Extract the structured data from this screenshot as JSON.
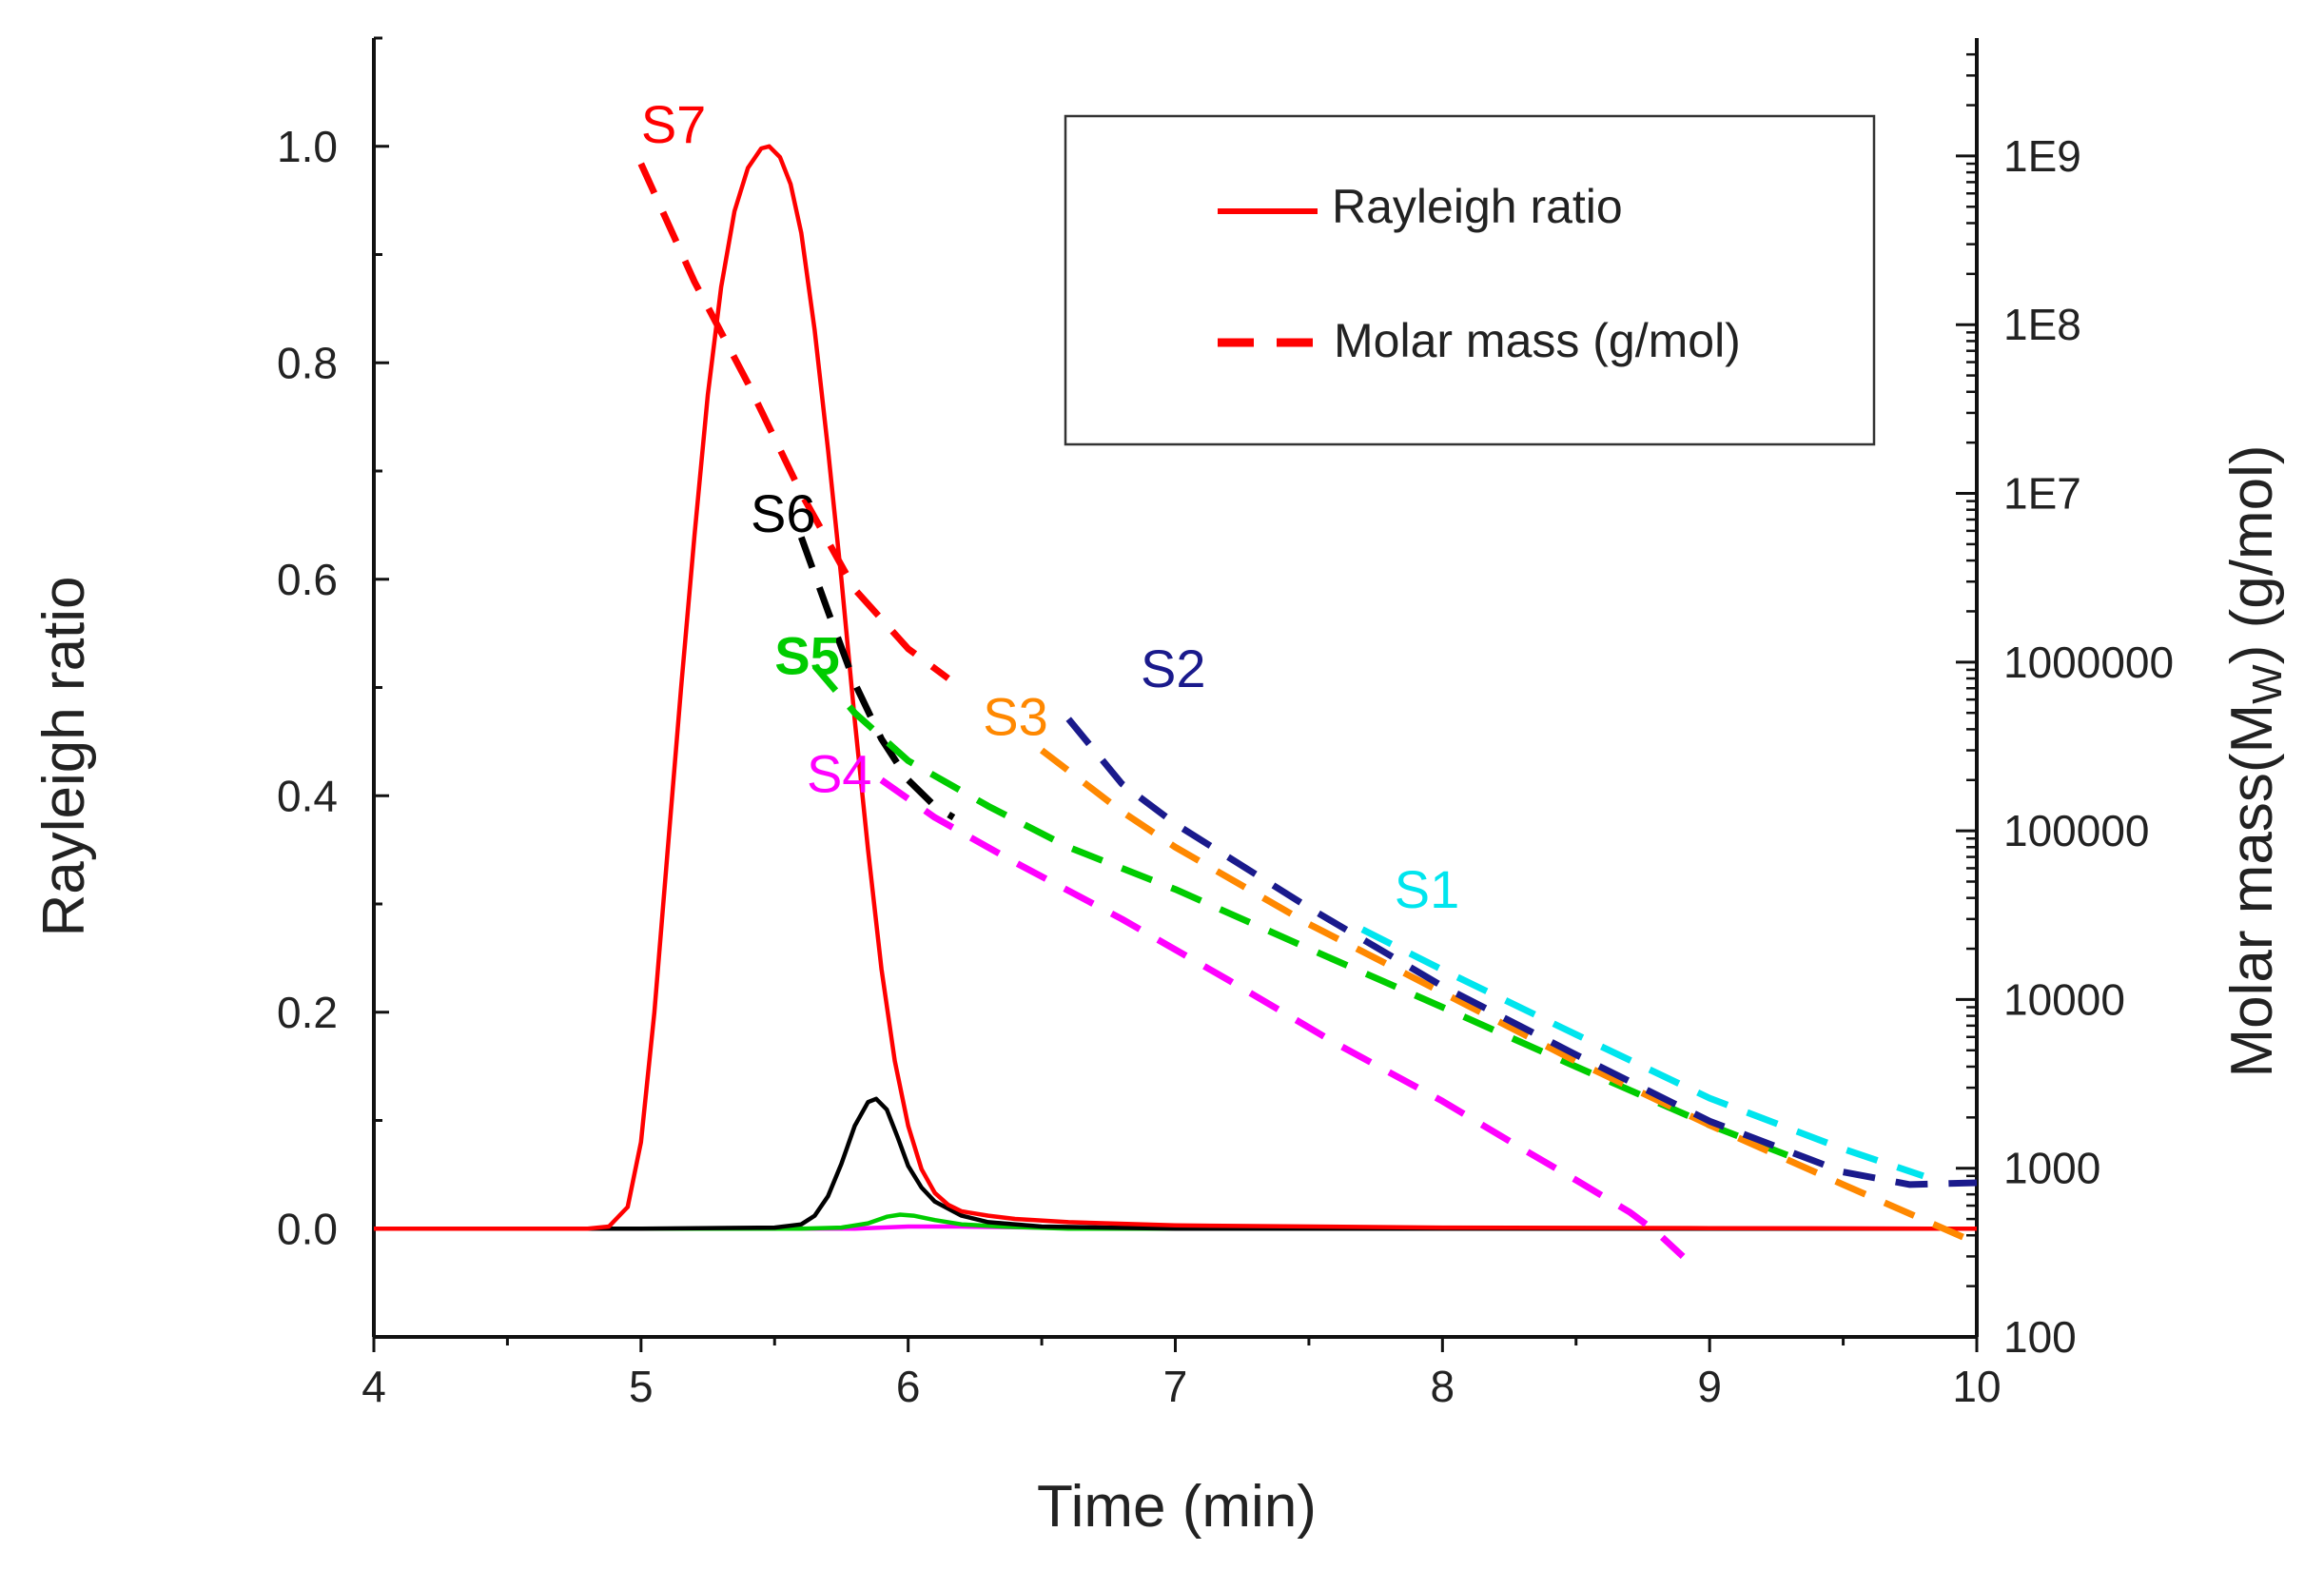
{
  "chart_data": {
    "type": "line",
    "xlabel": "Time (min)",
    "ylabel": "Rayleigh ratio",
    "y2label_prefix": "Molar mass(M",
    "y2label_sub": "W",
    "y2label_suffix": ")  (g/mol)",
    "xlim": [
      4,
      10
    ],
    "ylim": [
      -0.1,
      1.1
    ],
    "y2lim_log": [
      100,
      5000000000
    ],
    "x_ticks": [
      4,
      5,
      6,
      7,
      8,
      9,
      10
    ],
    "x_tick_labels": [
      "4",
      "5",
      "6",
      "7",
      "8",
      "9",
      "10"
    ],
    "y_ticks": [
      0.0,
      0.2,
      0.4,
      0.6,
      0.8,
      1.0
    ],
    "y_tick_labels": [
      "0.0",
      "0.2",
      "0.4",
      "0.6",
      "0.8",
      "1.0"
    ],
    "y2_ticks": [
      100,
      1000,
      10000,
      100000,
      1000000,
      10000000,
      100000000,
      1000000000
    ],
    "y2_tick_labels": [
      "100",
      "1000",
      "10000",
      "100000",
      "1000000",
      "1E7",
      "1E8",
      "1E9"
    ],
    "legend": {
      "position": "top-right",
      "entries": [
        {
          "label": "Rayleigh ratio",
          "style": "solid",
          "color": "#ff0000"
        },
        {
          "label": "Molar mass (g/mol)",
          "style": "dashed",
          "color": "#ff0000"
        }
      ]
    },
    "rayleigh_series": [
      {
        "name": "S7",
        "color": "#ff0000",
        "x": [
          4.0,
          4.8,
          4.88,
          4.95,
          5.0,
          5.05,
          5.1,
          5.15,
          5.2,
          5.25,
          5.3,
          5.35,
          5.4,
          5.45,
          5.48,
          5.52,
          5.56,
          5.6,
          5.65,
          5.7,
          5.75,
          5.8,
          5.85,
          5.9,
          5.95,
          6.0,
          6.05,
          6.1,
          6.15,
          6.2,
          6.3,
          6.4,
          6.6,
          7.0,
          8.0,
          9.0,
          10.0
        ],
        "y": [
          0.0,
          0.0,
          0.002,
          0.02,
          0.08,
          0.2,
          0.35,
          0.5,
          0.64,
          0.77,
          0.87,
          0.94,
          0.98,
          0.998,
          1.0,
          0.99,
          0.965,
          0.92,
          0.83,
          0.72,
          0.6,
          0.47,
          0.35,
          0.24,
          0.155,
          0.095,
          0.055,
          0.033,
          0.022,
          0.016,
          0.012,
          0.009,
          0.006,
          0.003,
          0.001,
          0.0005,
          0.0
        ]
      },
      {
        "name": "S6",
        "color": "#000000",
        "x": [
          4.0,
          5.0,
          5.5,
          5.6,
          5.65,
          5.7,
          5.75,
          5.8,
          5.85,
          5.88,
          5.92,
          5.96,
          6.0,
          6.05,
          6.1,
          6.2,
          6.3,
          6.5,
          7.0,
          10.0
        ],
        "y": [
          0.0,
          0.0,
          0.001,
          0.004,
          0.012,
          0.03,
          0.06,
          0.095,
          0.117,
          0.12,
          0.11,
          0.085,
          0.058,
          0.038,
          0.025,
          0.012,
          0.006,
          0.002,
          0.0,
          0.0
        ]
      },
      {
        "name": "S5",
        "color": "#00cc00",
        "x": [
          4.0,
          5.6,
          5.75,
          5.85,
          5.92,
          5.97,
          6.02,
          6.1,
          6.2,
          6.35,
          6.6,
          10.0
        ],
        "y": [
          0.0,
          0.0,
          0.001,
          0.005,
          0.011,
          0.013,
          0.012,
          0.008,
          0.004,
          0.002,
          0.0,
          0.0
        ]
      },
      {
        "name": "S4",
        "color": "#ff00ff",
        "x": [
          4.0,
          5.8,
          6.0,
          6.2,
          6.5,
          10.0
        ],
        "y": [
          0.0,
          0.0,
          0.002,
          0.002,
          0.001,
          0.0
        ]
      }
    ],
    "molar_series": [
      {
        "name": "S7",
        "color": "#ff0000",
        "x": [
          5.0,
          5.2,
          5.4,
          5.6,
          5.8,
          6.0,
          6.15
        ],
        "y": [
          900000000,
          180000000,
          45000000,
          10000000,
          2700000,
          1200000,
          800000
        ]
      },
      {
        "name": "S6",
        "color": "#000000",
        "x": [
          5.6,
          5.7,
          5.8,
          5.9,
          6.0,
          6.1,
          6.17
        ],
        "y": [
          5500000,
          2000000,
          750000,
          350000,
          200000,
          140000,
          120000
        ]
      },
      {
        "name": "S5",
        "color": "#00cc00",
        "x": [
          5.65,
          5.8,
          6.0,
          6.3,
          6.6,
          7.0,
          7.5,
          8.0,
          8.5,
          9.0,
          9.35
        ],
        "y": [
          950000,
          500000,
          260000,
          140000,
          80000,
          45000,
          20000,
          9000,
          4000,
          1800,
          1100
        ]
      },
      {
        "name": "S4",
        "color": "#ff00ff",
        "x": [
          5.9,
          6.1,
          6.4,
          6.8,
          7.2,
          7.6,
          8.0,
          8.3,
          8.5,
          8.7,
          8.8,
          8.9
        ],
        "y": [
          200000,
          120000,
          65000,
          30000,
          13000,
          5500,
          2500,
          1300,
          850,
          550,
          420,
          300
        ]
      },
      {
        "name": "S3",
        "color": "#ff8800",
        "x": [
          6.5,
          6.8,
          7.0,
          7.5,
          8.0,
          8.5,
          9.0,
          9.5,
          10.0
        ],
        "y": [
          300000,
          130000,
          80000,
          28000,
          11000,
          4300,
          1800,
          800,
          360
        ]
      },
      {
        "name": "S2",
        "color": "#1a1a8c",
        "x": [
          6.6,
          6.8,
          7.0,
          7.5,
          8.0,
          8.5,
          9.0,
          9.5,
          9.75,
          10.0
        ],
        "y": [
          460000,
          190000,
          110000,
          35000,
          12000,
          4700,
          1900,
          950,
          800,
          820
        ]
      },
      {
        "name": "S1",
        "color": "#00e5ee",
        "x": [
          7.7,
          8.0,
          8.5,
          9.0,
          9.5,
          9.8
        ],
        "y": [
          26000,
          15000,
          6200,
          2600,
          1300,
          900
        ]
      }
    ],
    "series_labels": [
      {
        "text": "S7",
        "color": "#ff0000",
        "x": 5.0,
        "y": 1200000000.0
      },
      {
        "text": "S6",
        "color": "#000000",
        "x": 5.41,
        "y": 5900000.0
      },
      {
        "text": "S5",
        "color": "#00cc00",
        "x": 5.5,
        "y": 850000.0
      },
      {
        "text": "S4",
        "color": "#ff00ff",
        "x": 5.62,
        "y": 170000.0
      },
      {
        "text": "S3",
        "color": "#ff8800",
        "x": 6.28,
        "y": 370000.0
      },
      {
        "text": "S2",
        "color": "#1a1a8c",
        "x": 6.87,
        "y": 710000.0
      },
      {
        "text": "S1",
        "color": "#00e5ee",
        "x": 7.82,
        "y": 35000.0
      }
    ]
  }
}
